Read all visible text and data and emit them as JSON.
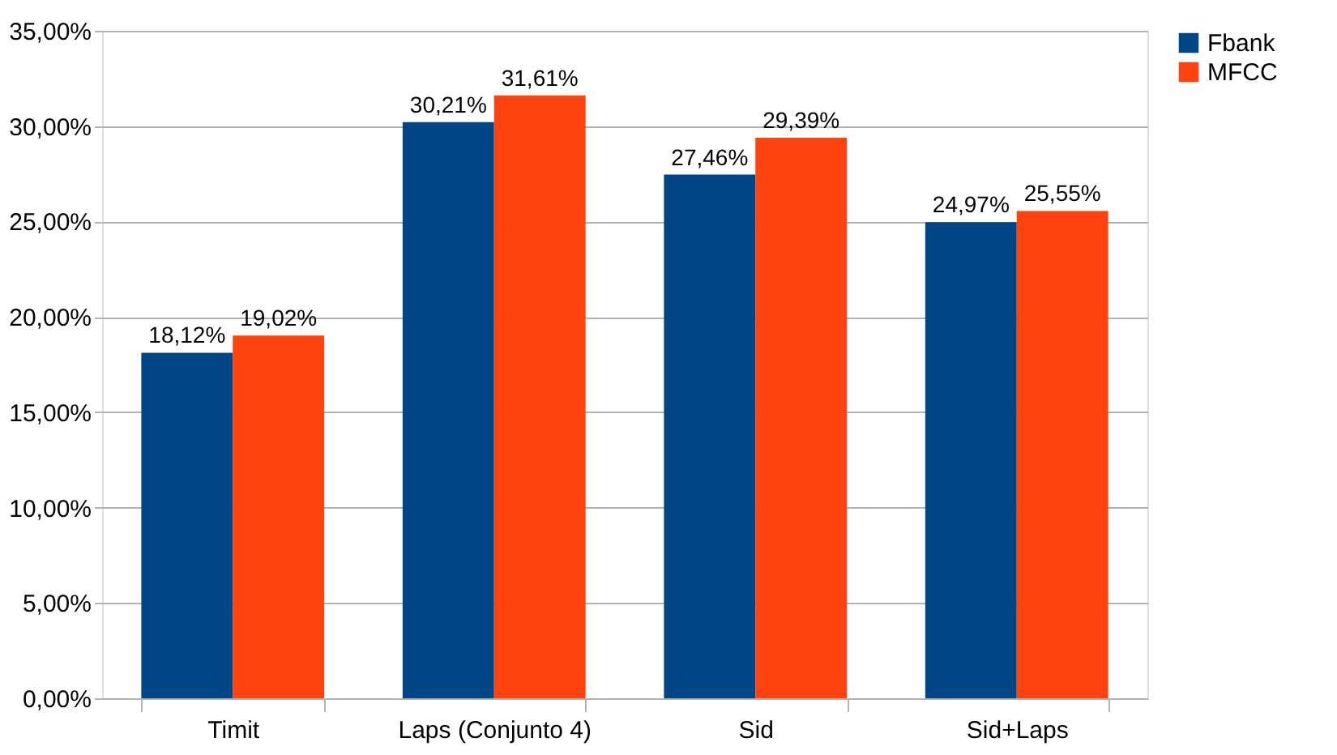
{
  "chart_data": {
    "type": "bar",
    "categories": [
      "Timit",
      "Laps (Conjunto 4)",
      "Sid",
      "Sid+Laps"
    ],
    "series": [
      {
        "name": "Fbank",
        "color": "#004586",
        "values": [
          18.12,
          30.21,
          27.46,
          24.97
        ],
        "value_labels": [
          "18,12%",
          "30,21%",
          "27,46%",
          "24,97%"
        ]
      },
      {
        "name": "MFCC",
        "color": "#ff420e",
        "values": [
          19.02,
          31.61,
          29.39,
          25.55
        ],
        "value_labels": [
          "19,02%",
          "31,61%",
          "29,39%",
          "25,55%"
        ]
      }
    ],
    "ylim": [
      0,
      35
    ],
    "yticks": [
      {
        "value": 0,
        "label": "0,00%"
      },
      {
        "value": 5,
        "label": "5,00%"
      },
      {
        "value": 10,
        "label": "10,00%"
      },
      {
        "value": 15,
        "label": "15,00%"
      },
      {
        "value": 20,
        "label": "20,00%"
      },
      {
        "value": 25,
        "label": "25,00%"
      },
      {
        "value": 30,
        "label": "30,00%"
      },
      {
        "value": 35,
        "label": "35,00%"
      }
    ],
    "grid": "y",
    "legend": "right"
  }
}
